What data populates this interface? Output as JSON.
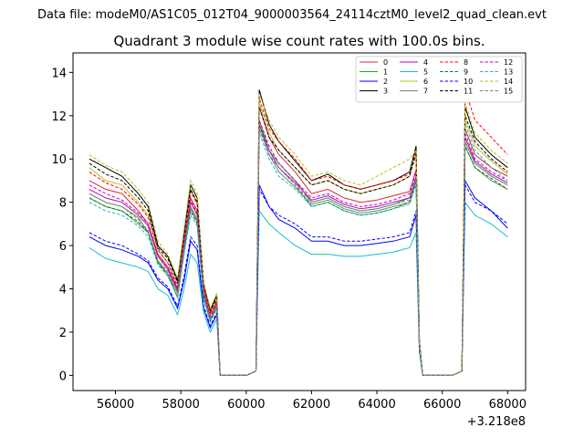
{
  "header": {
    "suptitle": "Data file: modeM0/AS1C05_012T04_9000003564_24114cztM0_level2_quad_clean.evt"
  },
  "chart_data": {
    "type": "line",
    "title": "Quadrant 3 module wise count rates with 100.0s bins.",
    "xlabel": "",
    "ylabel": "",
    "x_offset_label": "+3.218e8",
    "xlim": [
      54700,
      68550
    ],
    "ylim": [
      -0.7,
      14.9
    ],
    "x_ticks": [
      56000,
      58000,
      60000,
      62000,
      64000,
      66000,
      68000
    ],
    "x_tick_labels": [
      "56000",
      "58000",
      "60000",
      "62000",
      "64000",
      "66000",
      "68000"
    ],
    "y_ticks": [
      0,
      2,
      4,
      6,
      8,
      10,
      12,
      14
    ],
    "y_tick_labels": [
      "0",
      "2",
      "4",
      "6",
      "8",
      "10",
      "12",
      "14"
    ],
    "grid": false,
    "legend_position": "top-right",
    "legend_columns": 4,
    "x": [
      55200,
      55700,
      56200,
      56700,
      57000,
      57300,
      57600,
      57900,
      58100,
      58300,
      58500,
      58700,
      58900,
      59100,
      59200,
      59500,
      60000,
      60300,
      60400,
      60700,
      61000,
      61500,
      62000,
      62500,
      63000,
      63500,
      64000,
      64500,
      65000,
      65200,
      65300,
      65400,
      65800,
      66300,
      66600,
      66700,
      67000,
      67500,
      68000
    ],
    "series": [
      {
        "name": "0",
        "color": "#d62728",
        "dashed": false,
        "values": [
          9.0,
          8.6,
          8.4,
          7.6,
          7.0,
          5.6,
          5.0,
          4.0,
          6.2,
          8.2,
          7.6,
          4.0,
          2.8,
          3.4,
          0,
          0,
          0,
          0.2,
          12.4,
          11.0,
          10.2,
          9.4,
          8.4,
          8.6,
          8.2,
          8.0,
          8.1,
          8.3,
          8.5,
          9.5,
          1.5,
          0,
          0,
          0,
          0.2,
          11.4,
          10.2,
          9.6,
          9.2
        ]
      },
      {
        "name": "1",
        "color": "#2ca02c",
        "dashed": false,
        "values": [
          8.4,
          8.0,
          7.8,
          7.3,
          6.6,
          5.3,
          4.7,
          3.6,
          5.8,
          7.8,
          7.2,
          3.7,
          2.5,
          3.2,
          0,
          0,
          0,
          0.2,
          11.8,
          10.4,
          9.8,
          9.0,
          8.0,
          8.2,
          7.8,
          7.6,
          7.7,
          7.9,
          8.2,
          9.1,
          1.4,
          0,
          0,
          0,
          0.2,
          10.8,
          9.8,
          9.2,
          8.8
        ]
      },
      {
        "name": "2",
        "color": "#0000ff",
        "dashed": false,
        "values": [
          6.4,
          6.0,
          5.8,
          5.5,
          5.2,
          4.4,
          4.0,
          3.1,
          4.4,
          6.2,
          5.8,
          3.1,
          2.2,
          2.8,
          0,
          0,
          0,
          0.2,
          8.8,
          7.8,
          7.2,
          6.8,
          6.2,
          6.2,
          6.0,
          6.0,
          6.1,
          6.2,
          6.4,
          7.4,
          1.2,
          0,
          0,
          0,
          0.2,
          9.0,
          8.2,
          7.6,
          6.8
        ]
      },
      {
        "name": "3",
        "color": "#000000",
        "dashed": false,
        "values": [
          10.0,
          9.6,
          9.2,
          8.4,
          7.8,
          6.0,
          5.5,
          4.4,
          6.6,
          8.8,
          8.2,
          4.2,
          3.0,
          3.7,
          0,
          0,
          0,
          0.2,
          13.2,
          11.6,
          10.8,
          9.9,
          9.0,
          9.3,
          8.8,
          8.6,
          8.8,
          9.0,
          9.4,
          10.6,
          1.6,
          0,
          0,
          0,
          0.2,
          12.4,
          11.0,
          10.2,
          9.6
        ]
      },
      {
        "name": "4",
        "color": "#bf00bf",
        "dashed": false,
        "values": [
          8.6,
          8.2,
          8.0,
          7.4,
          6.9,
          5.5,
          4.9,
          3.9,
          6.0,
          8.0,
          7.4,
          3.8,
          2.6,
          3.3,
          0,
          0,
          0,
          0.2,
          11.6,
          10.4,
          9.6,
          8.9,
          8.1,
          8.3,
          7.9,
          7.7,
          7.8,
          8.0,
          8.2,
          9.2,
          1.5,
          0,
          0,
          0,
          0.2,
          11.0,
          9.9,
          9.3,
          8.9
        ]
      },
      {
        "name": "5",
        "color": "#17becf",
        "dashed": false,
        "values": [
          5.9,
          5.4,
          5.2,
          5.0,
          4.8,
          4.0,
          3.7,
          2.8,
          4.0,
          5.6,
          5.2,
          2.9,
          2.0,
          2.6,
          0,
          0,
          0,
          0.2,
          7.6,
          7.0,
          6.6,
          6.0,
          5.6,
          5.6,
          5.5,
          5.5,
          5.6,
          5.7,
          5.9,
          6.6,
          1.1,
          0,
          0,
          0,
          0.2,
          8.0,
          7.4,
          7.0,
          6.4
        ]
      },
      {
        "name": "6",
        "color": "#bcbd22",
        "dashed": false,
        "values": [
          9.6,
          9.0,
          8.8,
          8.0,
          7.4,
          5.8,
          5.2,
          4.2,
          6.4,
          8.6,
          8.0,
          4.1,
          2.9,
          3.5,
          0,
          0,
          0,
          0.2,
          12.6,
          11.2,
          10.4,
          9.6,
          8.8,
          9.0,
          8.6,
          8.4,
          8.6,
          8.8,
          9.2,
          10.2,
          1.6,
          0,
          0,
          0,
          0.2,
          11.8,
          10.6,
          9.9,
          9.3
        ]
      },
      {
        "name": "7",
        "color": "#7f7f7f",
        "dashed": false,
        "values": [
          8.2,
          7.8,
          7.6,
          7.0,
          6.6,
          5.2,
          4.7,
          3.8,
          5.8,
          7.7,
          7.1,
          3.6,
          2.6,
          3.2,
          0,
          0,
          0,
          0.2,
          11.4,
          10.2,
          9.4,
          8.7,
          7.9,
          8.1,
          7.7,
          7.5,
          7.6,
          7.8,
          8.0,
          9.0,
          1.4,
          0,
          0,
          0,
          0.2,
          10.6,
          9.6,
          9.0,
          8.6
        ]
      },
      {
        "name": "8",
        "color": "#ff0000",
        "dashed": true,
        "values": [
          9.4,
          8.9,
          8.6,
          7.9,
          7.3,
          5.8,
          5.2,
          4.1,
          6.4,
          8.5,
          7.9,
          4.1,
          2.9,
          3.5,
          0,
          0,
          0,
          0.2,
          12.8,
          11.4,
          10.8,
          10.0,
          9.0,
          9.2,
          8.8,
          8.6,
          8.8,
          9.0,
          9.3,
          10.2,
          1.6,
          0,
          0,
          0,
          0.2,
          13.2,
          11.8,
          11.0,
          10.2
        ]
      },
      {
        "name": "9",
        "color": "#008000",
        "dashed": true,
        "values": [
          8.2,
          7.8,
          7.6,
          7.1,
          6.6,
          5.2,
          4.6,
          3.6,
          5.7,
          7.6,
          7.0,
          3.6,
          2.5,
          3.1,
          0,
          0,
          0,
          0.2,
          11.6,
          10.2,
          9.6,
          8.8,
          7.8,
          8.0,
          7.6,
          7.4,
          7.5,
          7.7,
          8.0,
          8.9,
          1.4,
          0,
          0,
          0,
          0.2,
          10.6,
          9.6,
          9.1,
          8.6
        ]
      },
      {
        "name": "10",
        "color": "#0000ff",
        "dashed": true,
        "values": [
          6.6,
          6.2,
          6.0,
          5.6,
          5.3,
          4.5,
          4.1,
          3.2,
          4.6,
          6.4,
          6.0,
          3.2,
          2.3,
          2.9,
          0,
          0,
          0,
          0.2,
          8.6,
          7.8,
          7.4,
          7.0,
          6.4,
          6.4,
          6.2,
          6.2,
          6.3,
          6.4,
          6.6,
          7.6,
          1.2,
          0,
          0,
          0,
          0.2,
          8.8,
          8.0,
          7.6,
          7.0
        ]
      },
      {
        "name": "11",
        "color": "#000000",
        "dashed": true,
        "values": [
          9.8,
          9.3,
          9.0,
          8.2,
          7.6,
          5.9,
          5.4,
          4.3,
          6.5,
          8.6,
          8.0,
          4.2,
          3.0,
          3.6,
          0,
          0,
          0,
          0.2,
          12.4,
          11.0,
          10.4,
          9.6,
          8.8,
          9.0,
          8.6,
          8.4,
          8.6,
          8.8,
          9.2,
          10.4,
          1.6,
          0,
          0,
          0,
          0.2,
          12.0,
          10.8,
          10.0,
          9.4
        ]
      },
      {
        "name": "12",
        "color": "#bf00bf",
        "dashed": true,
        "values": [
          8.8,
          8.4,
          8.1,
          7.5,
          7.0,
          5.5,
          5.0,
          4.0,
          6.1,
          8.1,
          7.5,
          3.9,
          2.7,
          3.3,
          0,
          0,
          0,
          0.2,
          11.8,
          10.6,
          9.8,
          9.0,
          8.2,
          8.4,
          8.0,
          7.8,
          7.9,
          8.1,
          8.4,
          9.4,
          1.5,
          0,
          0,
          0,
          0.2,
          11.2,
          10.0,
          9.4,
          9.0
        ]
      },
      {
        "name": "13",
        "color": "#17becf",
        "dashed": true,
        "values": [
          8.0,
          7.6,
          7.4,
          6.9,
          6.4,
          5.1,
          4.6,
          3.6,
          5.6,
          7.4,
          6.9,
          3.5,
          2.5,
          3.1,
          0,
          0,
          0,
          0.2,
          11.2,
          10.0,
          9.2,
          8.6,
          7.8,
          8.0,
          7.6,
          7.4,
          7.5,
          7.7,
          7.9,
          8.8,
          1.4,
          0,
          0,
          0,
          0.2,
          11.6,
          10.4,
          9.6,
          9.0
        ]
      },
      {
        "name": "14",
        "color": "#bcbd22",
        "dashed": true,
        "values": [
          10.2,
          9.7,
          9.4,
          8.6,
          8.0,
          6.2,
          5.6,
          4.5,
          6.8,
          9.0,
          8.4,
          4.3,
          3.1,
          3.8,
          0,
          0,
          0,
          0.2,
          13.0,
          11.8,
          11.0,
          10.2,
          9.2,
          9.4,
          9.0,
          8.8,
          9.2,
          9.6,
          10.0,
          10.4,
          1.6,
          0,
          0,
          0,
          0.2,
          12.6,
          11.2,
          10.4,
          9.8
        ]
      },
      {
        "name": "15",
        "color": "#7f7f7f",
        "dashed": true,
        "values": [
          8.4,
          8.0,
          7.8,
          7.2,
          6.7,
          5.3,
          4.8,
          3.8,
          5.9,
          7.8,
          7.2,
          3.7,
          2.6,
          3.2,
          0,
          0,
          0,
          0.2,
          11.4,
          10.2,
          9.6,
          8.8,
          8.0,
          8.2,
          7.8,
          7.6,
          7.7,
          7.9,
          8.1,
          9.1,
          1.4,
          0,
          0,
          0,
          0.2,
          10.8,
          9.8,
          9.2,
          8.8
        ]
      }
    ]
  }
}
